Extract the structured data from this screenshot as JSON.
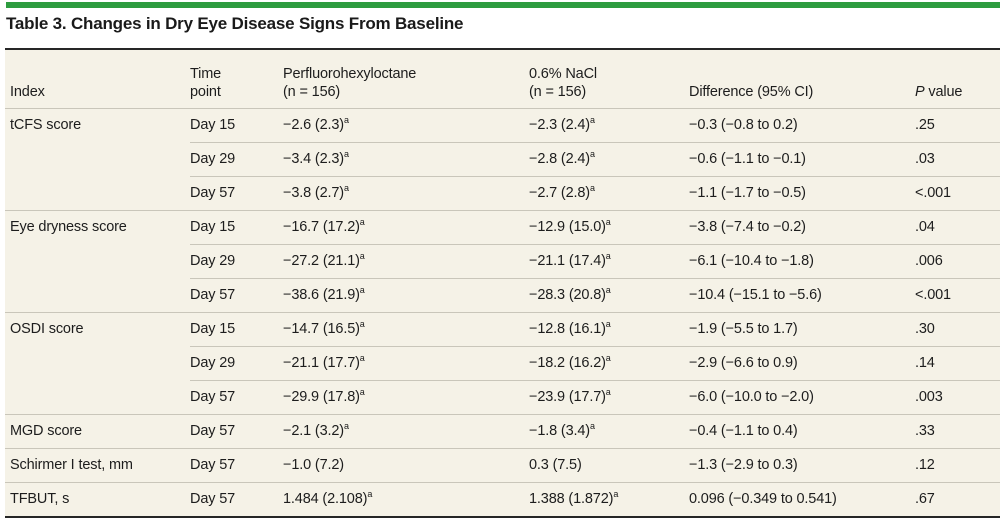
{
  "title": "Table 3. Changes in Dry Eye Disease Signs From Baseline",
  "colors": {
    "accent_green": "#2e9c3f",
    "table_bg": "#f5f2e7",
    "divider": "#c9c6ba",
    "rule_dark": "#262626",
    "text": "#1d1d1d"
  },
  "table": {
    "headers": {
      "index": "Index",
      "time": "Time point",
      "drug1": "Perfluorohexyloctane",
      "drug1_n": "(n = 156)",
      "drug2": "0.6% NaCl",
      "drug2_n": "(n = 156)",
      "diff": "Difference (95% CI)",
      "p": "P value"
    },
    "footnote_marker": "a",
    "sections": [
      {
        "index": "tCFS score",
        "rows": [
          {
            "time": "Day 15",
            "drug1": "−2.6 (2.3)",
            "drug1_sup": "a",
            "drug2": "−2.3 (2.4)",
            "drug2_sup": "a",
            "diff": "−0.3 (−0.8 to 0.2)",
            "p": ".25"
          },
          {
            "time": "Day 29",
            "drug1": "−3.4 (2.3)",
            "drug1_sup": "a",
            "drug2": "−2.8 (2.4)",
            "drug2_sup": "a",
            "diff": "−0.6 (−1.1 to −0.1)",
            "p": ".03"
          },
          {
            "time": "Day 57",
            "drug1": "−3.8 (2.7)",
            "drug1_sup": "a",
            "drug2": "−2.7 (2.8)",
            "drug2_sup": "a",
            "diff": "−1.1 (−1.7 to −0.5)",
            "p": "<.001"
          }
        ]
      },
      {
        "index": "Eye dryness score",
        "rows": [
          {
            "time": "Day 15",
            "drug1": "−16.7 (17.2)",
            "drug1_sup": "a",
            "drug2": "−12.9 (15.0)",
            "drug2_sup": "a",
            "diff": "−3.8 (−7.4 to −0.2)",
            "p": ".04"
          },
          {
            "time": "Day 29",
            "drug1": "−27.2 (21.1)",
            "drug1_sup": "a",
            "drug2": "−21.1 (17.4)",
            "drug2_sup": "a",
            "diff": "−6.1 (−10.4 to −1.8)",
            "p": ".006"
          },
          {
            "time": "Day 57",
            "drug1": "−38.6 (21.9)",
            "drug1_sup": "a",
            "drug2": "−28.3 (20.8)",
            "drug2_sup": "a",
            "diff": "−10.4 (−15.1 to −5.6)",
            "p": "<.001"
          }
        ]
      },
      {
        "index": "OSDI score",
        "rows": [
          {
            "time": "Day 15",
            "drug1": "−14.7 (16.5)",
            "drug1_sup": "a",
            "drug2": "−12.8 (16.1)",
            "drug2_sup": "a",
            "diff": "−1.9 (−5.5 to 1.7)",
            "p": ".30"
          },
          {
            "time": "Day 29",
            "drug1": "−21.1 (17.7)",
            "drug1_sup": "a",
            "drug2": "−18.2 (16.2)",
            "drug2_sup": "a",
            "diff": "−2.9 (−6.6 to 0.9)",
            "p": ".14"
          },
          {
            "time": "Day 57",
            "drug1": "−29.9 (17.8)",
            "drug1_sup": "a",
            "drug2": "−23.9 (17.7)",
            "drug2_sup": "a",
            "diff": "−6.0 (−10.0 to −2.0)",
            "p": ".003"
          }
        ]
      },
      {
        "index": "MGD score",
        "rows": [
          {
            "time": "Day 57",
            "drug1": "−2.1 (3.2)",
            "drug1_sup": "a",
            "drug2": "−1.8 (3.4)",
            "drug2_sup": "a",
            "diff": "−0.4 (−1.1 to 0.4)",
            "p": ".33"
          }
        ]
      },
      {
        "index": "Schirmer I test, mm",
        "rows": [
          {
            "time": "Day 57",
            "drug1": "−1.0 (7.2)",
            "drug2": "0.3 (7.5)",
            "diff": "−1.3 (−2.9 to 0.3)",
            "p": ".12"
          }
        ]
      },
      {
        "index": "TFBUT, s",
        "rows": [
          {
            "time": "Day 57",
            "drug1": "1.484 (2.108)",
            "drug1_sup": "a",
            "drug2": "1.388 (1.872)",
            "drug2_sup": "a",
            "diff": "0.096 (−0.349 to 0.541)",
            "p": ".67"
          }
        ]
      }
    ]
  }
}
